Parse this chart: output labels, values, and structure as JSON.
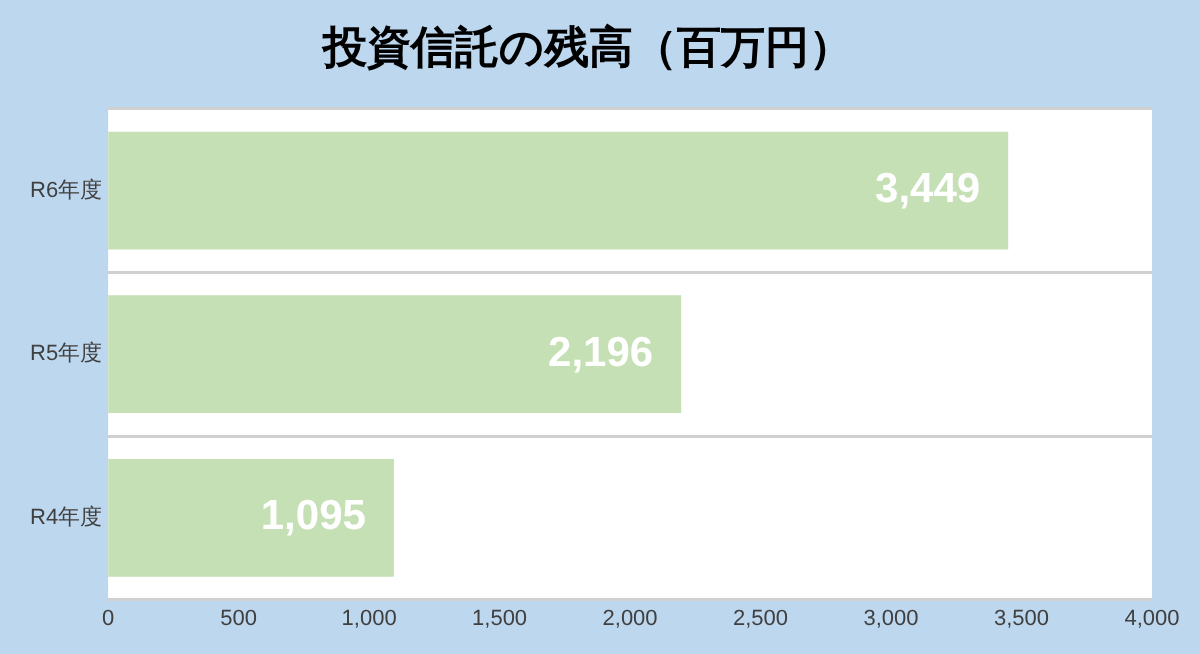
{
  "chart_data": {
    "type": "bar",
    "orientation": "horizontal",
    "title": "投資信託の残高（百万円）",
    "categories": [
      "R6年度",
      "R5年度",
      "R4年度"
    ],
    "values": [
      3449,
      2196,
      1095
    ],
    "color": "#c5e0b4",
    "value_labels": [
      "3,449",
      "2,196",
      "1,095"
    ],
    "xlim": [
      0,
      4000
    ],
    "xticks": [
      0,
      500,
      {
        "value": 1000,
        "label": "1,000"
      },
      {
        "value": 1500,
        "label": "1,500"
      },
      {
        "value": 2000,
        "label": "2,000"
      },
      {
        "value": 2500,
        "label": "2,500"
      },
      {
        "value": 3000,
        "label": "3,000"
      },
      {
        "value": 3500,
        "label": "3,500"
      },
      {
        "value": 4000,
        "label": "4,000"
      }
    ],
    "grid": "y",
    "legend": false
  }
}
